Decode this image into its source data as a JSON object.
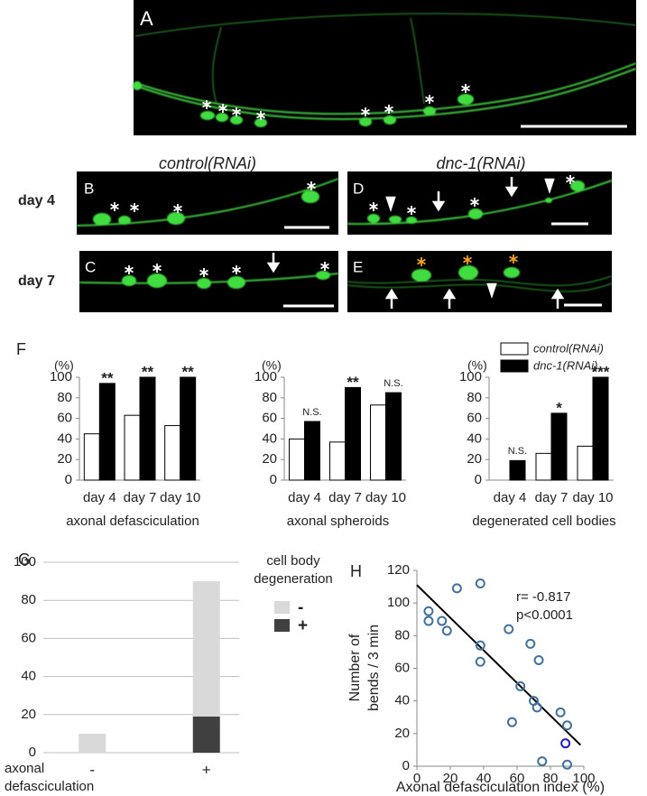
{
  "figure": {
    "panel_labels": [
      "A",
      "B",
      "C",
      "D",
      "E",
      "F",
      "G",
      "H"
    ],
    "column_titles": [
      "control(RNAi)",
      "dnc-1(RNAi)"
    ],
    "row_labels": [
      "day 4",
      "day 7"
    ]
  },
  "chart_data": [
    {
      "type": "bar",
      "ylabel": "(%)",
      "xlabel": "axonal defasciculation",
      "categories": [
        "day 4",
        "day 7",
        "day 10"
      ],
      "series": [
        {
          "name": "control(RNAi)",
          "color": "#ffffff",
          "values": [
            45,
            63,
            53
          ]
        },
        {
          "name": "dnc-1(RNAi)",
          "color": "#000000",
          "values": [
            94,
            100,
            100
          ]
        }
      ],
      "significance": [
        "**",
        "**",
        "**"
      ],
      "ylim": [
        0,
        100
      ],
      "yticks": [
        0,
        20,
        40,
        60,
        80,
        100
      ]
    },
    {
      "type": "bar",
      "ylabel": "(%)",
      "xlabel": "axonal spheroids",
      "categories": [
        "day 4",
        "day 7",
        "day 10"
      ],
      "series": [
        {
          "color": "#ffffff",
          "values": [
            40,
            37,
            73
          ]
        },
        {
          "color": "#000000",
          "values": [
            57,
            90,
            85
          ]
        }
      ],
      "significance": [
        "N.S.",
        "**",
        "N.S."
      ],
      "ylim": [
        0,
        100
      ],
      "yticks": [
        0,
        20,
        40,
        60,
        80,
        100
      ]
    },
    {
      "type": "bar",
      "ylabel": "(%)",
      "xlabel": "degenerated cell bodies",
      "categories": [
        "day 4",
        "day 7",
        "day 10"
      ],
      "series": [
        {
          "color": "#ffffff",
          "values": [
            0,
            26,
            33
          ]
        },
        {
          "color": "#000000",
          "values": [
            19,
            65,
            100
          ]
        }
      ],
      "significance": [
        "N.S.",
        "*",
        "***"
      ],
      "ylim": [
        0,
        100
      ],
      "yticks": [
        0,
        20,
        40,
        60,
        80,
        100
      ]
    },
    {
      "type": "stacked_bar",
      "legend_title": [
        "cell body",
        "degeneration"
      ],
      "xlabel": [
        "axonal",
        "defasciculation"
      ],
      "categories": [
        "-",
        "+"
      ],
      "series": [
        {
          "name": "-",
          "color": "#d9d9d9",
          "values": [
            10,
            71
          ]
        },
        {
          "name": "+",
          "color": "#404040",
          "values": [
            0,
            19
          ]
        }
      ],
      "ylim": [
        0,
        100
      ],
      "yticks": [
        0,
        20,
        40,
        60,
        80,
        100
      ],
      "grid": true
    },
    {
      "type": "scatter",
      "xlabel": "Axonal defasciculation index (%)",
      "ylabel": [
        "Number of",
        "bends / 3 min"
      ],
      "annotations": [
        "r= -0.817",
        "p<0.0001"
      ],
      "series": [
        {
          "color": "#41719c",
          "x": [
            7,
            7,
            15,
            18,
            24,
            38,
            38,
            38,
            55,
            57,
            62,
            68,
            70,
            72,
            73,
            75,
            86,
            90,
            90
          ],
          "y": [
            95,
            89,
            89,
            83,
            109,
            112,
            74,
            64,
            84,
            27,
            49,
            75,
            40,
            36,
            65,
            3,
            33,
            25,
            1
          ]
        },
        {
          "color": "#1f1fd0",
          "x": [
            89
          ],
          "y": [
            14
          ]
        }
      ],
      "trendline": {
        "x": [
          0,
          98
        ],
        "y": [
          111,
          13
        ]
      },
      "xlim": [
        0,
        100
      ],
      "xticks": [
        0,
        20,
        40,
        60,
        80,
        100
      ],
      "ylim": [
        0,
        120
      ],
      "yticks": [
        0,
        20,
        40,
        60,
        80,
        100,
        120
      ]
    }
  ]
}
